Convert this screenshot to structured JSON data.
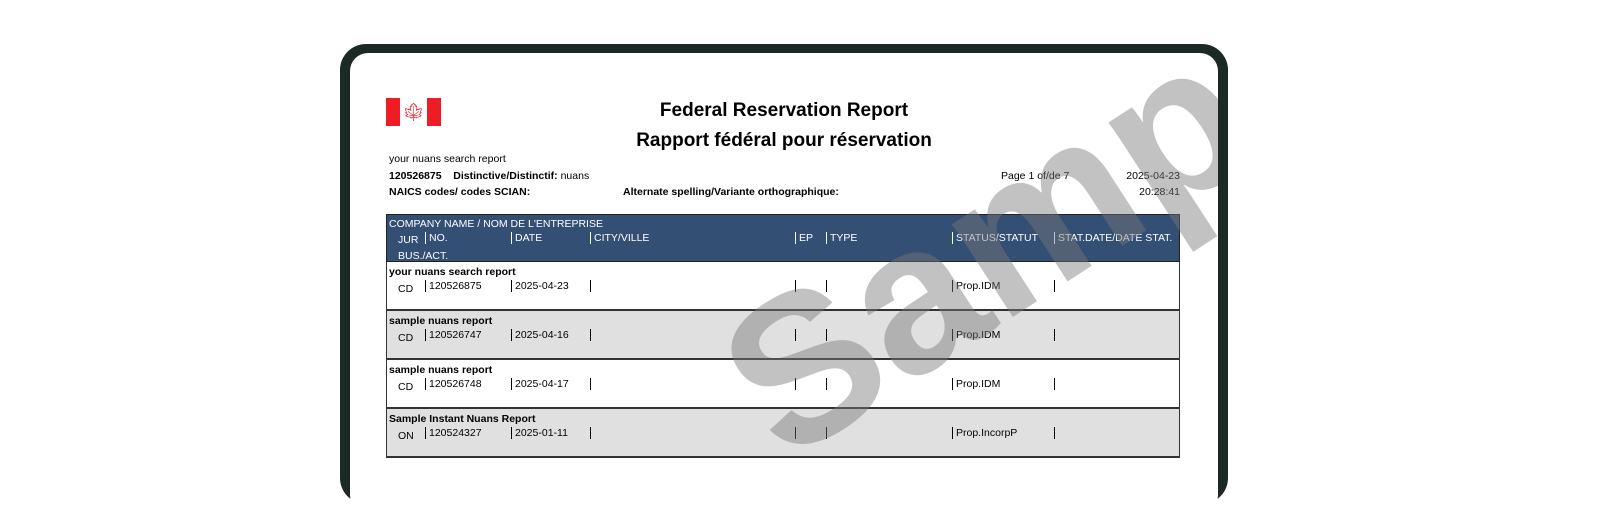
{
  "header": {
    "title_en": "Federal Reservation Report",
    "title_fr": "Rapport fédéral pour réservation",
    "search_name": "your nuans search report",
    "report_number": "120526875",
    "distinctive_label": "Distinctive/Distinctif:",
    "distinctive_value": "nuans",
    "naics_label": "NAICS codes/ codes SCIAN:",
    "alternate_label": "Alternate spelling/Variante orthographique:",
    "page": "Page 1 of/de 7",
    "date": "2025-04-23",
    "time": "20:28:41",
    "flag_icon": "canada-flag-icon"
  },
  "table": {
    "headers": {
      "company": "COMPANY NAME / NOM DE L'ENTREPRISE",
      "jur": "JUR",
      "no": "NO.",
      "date": "DATE",
      "city": "CITY/VILLE",
      "ep": "EP",
      "type": "TYPE",
      "status": "STATUS/STATUT",
      "stat_date": "STAT.DATE/DATE STAT.",
      "bus": "BUS./ACT."
    },
    "rows": [
      {
        "name": "your nuans search report",
        "jur": "CD",
        "no": "120526875",
        "date": "2025-04-23",
        "status": "Prop.IDM"
      },
      {
        "name": "sample nuans report",
        "jur": "CD",
        "no": "120526747",
        "date": "2025-04-16",
        "status": "Prop.IDM"
      },
      {
        "name": "sample nuans report",
        "jur": "CD",
        "no": "120526748",
        "date": "2025-04-17",
        "status": "Prop.IDM"
      },
      {
        "name": "Sample Instant Nuans Report",
        "jur": "ON",
        "no": "120524327",
        "date": "2025-01-11",
        "status": "Prop.IncorpP"
      }
    ]
  },
  "watermark": "Sample",
  "colors": {
    "header_bg": "#334f74",
    "alt_row": "#e0e0e0",
    "frame": "#1b2a24",
    "flag_red": "#ee1c25"
  }
}
